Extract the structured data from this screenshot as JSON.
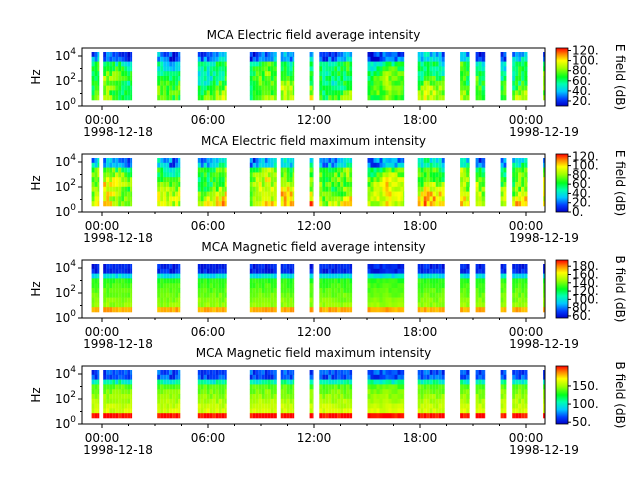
{
  "chart_data": [
    {
      "type": "heatmap",
      "title": "MCA  Electric field average intensity",
      "ylabel": "Hz",
      "y_scale": "log",
      "y_ticks": [
        {
          "base": "10",
          "exp": "0"
        },
        {
          "base": "10",
          "exp": "2"
        },
        {
          "base": "10",
          "exp": "4"
        }
      ],
      "x_ticks": [
        "00:00",
        "06:00",
        "12:00",
        "18:00",
        "00:00"
      ],
      "x_date_start": "1998-12-18",
      "x_date_end": "1998-12-19",
      "x_range_hours": [
        0,
        24
      ],
      "cbar_label": "E field (dB)",
      "cbar_ticks": [
        "20.",
        "40.",
        "60.",
        "80.",
        "100.",
        "120."
      ],
      "cbar_range": [
        10,
        125
      ],
      "data_intervals_hours": [
        [
          0.5,
          0.9
        ],
        [
          1.1,
          2.6
        ],
        [
          3.9,
          5.1
        ],
        [
          6.0,
          7.5
        ],
        [
          8.7,
          10.1
        ],
        [
          10.3,
          11.0
        ],
        [
          11.8,
          12.0
        ],
        [
          12.3,
          14.0
        ],
        [
          14.8,
          16.7
        ],
        [
          17.4,
          18.8
        ],
        [
          19.6,
          20.1
        ],
        [
          20.4,
          20.9
        ],
        [
          21.7,
          22.0
        ],
        [
          22.3,
          23.1
        ],
        [
          23.9,
          24.0
        ]
      ],
      "intensity_style": "electric"
    },
    {
      "type": "heatmap",
      "title": "MCA  Electric field maximum intensity",
      "ylabel": "Hz",
      "y_scale": "log",
      "y_ticks": [
        {
          "base": "10",
          "exp": "0"
        },
        {
          "base": "10",
          "exp": "2"
        },
        {
          "base": "10",
          "exp": "4"
        }
      ],
      "x_ticks": [
        "00:00",
        "06:00",
        "12:00",
        "18:00",
        "00:00"
      ],
      "x_date_start": "1998-12-18",
      "x_date_end": "1998-12-19",
      "x_range_hours": [
        0,
        24
      ],
      "cbar_label": "E field (dB)",
      "cbar_ticks": [
        "0.",
        "20.",
        "40.",
        "60.",
        "80.",
        "100.",
        "120."
      ],
      "cbar_range": [
        0,
        125
      ],
      "data_intervals_hours": [
        [
          0.5,
          0.9
        ],
        [
          1.1,
          2.6
        ],
        [
          3.9,
          5.1
        ],
        [
          6.0,
          7.5
        ],
        [
          8.7,
          10.1
        ],
        [
          10.3,
          11.0
        ],
        [
          11.8,
          12.0
        ],
        [
          12.3,
          14.0
        ],
        [
          14.8,
          16.7
        ],
        [
          17.4,
          18.8
        ],
        [
          19.6,
          20.1
        ],
        [
          20.4,
          20.9
        ],
        [
          21.7,
          22.0
        ],
        [
          22.3,
          23.1
        ],
        [
          23.9,
          24.0
        ]
      ],
      "intensity_style": "electric-max"
    },
    {
      "type": "heatmap",
      "title": "MCA  Magnetic field average intensity",
      "ylabel": "Hz",
      "y_scale": "log",
      "y_ticks": [
        {
          "base": "10",
          "exp": "0"
        },
        {
          "base": "10",
          "exp": "2"
        },
        {
          "base": "10",
          "exp": "4"
        }
      ],
      "x_ticks": [
        "00:00",
        "06:00",
        "12:00",
        "18:00",
        "00:00"
      ],
      "x_date_start": "1998-12-18",
      "x_date_end": "1998-12-19",
      "x_range_hours": [
        0,
        24
      ],
      "cbar_label": "B field (dB)",
      "cbar_ticks": [
        "60.",
        "80.",
        "100.",
        "120.",
        "140.",
        "160.",
        "180."
      ],
      "cbar_range": [
        55,
        195
      ],
      "data_intervals_hours": [
        [
          0.5,
          0.9
        ],
        [
          1.1,
          2.6
        ],
        [
          3.9,
          5.1
        ],
        [
          6.0,
          7.5
        ],
        [
          8.7,
          10.1
        ],
        [
          10.3,
          11.0
        ],
        [
          11.8,
          12.0
        ],
        [
          12.3,
          14.0
        ],
        [
          14.8,
          16.7
        ],
        [
          17.4,
          18.8
        ],
        [
          19.6,
          20.1
        ],
        [
          20.4,
          20.9
        ],
        [
          21.7,
          22.0
        ],
        [
          22.3,
          23.1
        ],
        [
          23.9,
          24.0
        ]
      ],
      "intensity_style": "magnetic"
    },
    {
      "type": "heatmap",
      "title": "MCA  Magnetic field maximum intensity",
      "ylabel": "Hz",
      "y_scale": "log",
      "y_ticks": [
        {
          "base": "10",
          "exp": "0"
        },
        {
          "base": "10",
          "exp": "2"
        },
        {
          "base": "10",
          "exp": "4"
        }
      ],
      "x_ticks": [
        "00:00",
        "06:00",
        "12:00",
        "18:00",
        "00:00"
      ],
      "x_date_start": "1998-12-18",
      "x_date_end": "1998-12-19",
      "x_range_hours": [
        0,
        24
      ],
      "cbar_label": "B field (dB)",
      "cbar_ticks": [
        "50.",
        "100.",
        "150."
      ],
      "cbar_range": [
        45,
        205
      ],
      "data_intervals_hours": [
        [
          0.5,
          0.9
        ],
        [
          1.1,
          2.6
        ],
        [
          3.9,
          5.1
        ],
        [
          6.0,
          7.5
        ],
        [
          8.7,
          10.1
        ],
        [
          10.3,
          11.0
        ],
        [
          11.8,
          12.0
        ],
        [
          12.3,
          14.0
        ],
        [
          14.8,
          16.7
        ],
        [
          17.4,
          18.8
        ],
        [
          19.6,
          20.1
        ],
        [
          20.4,
          20.9
        ],
        [
          21.7,
          22.0
        ],
        [
          22.3,
          23.1
        ],
        [
          23.9,
          24.0
        ]
      ],
      "intensity_style": "magnetic-max"
    }
  ]
}
